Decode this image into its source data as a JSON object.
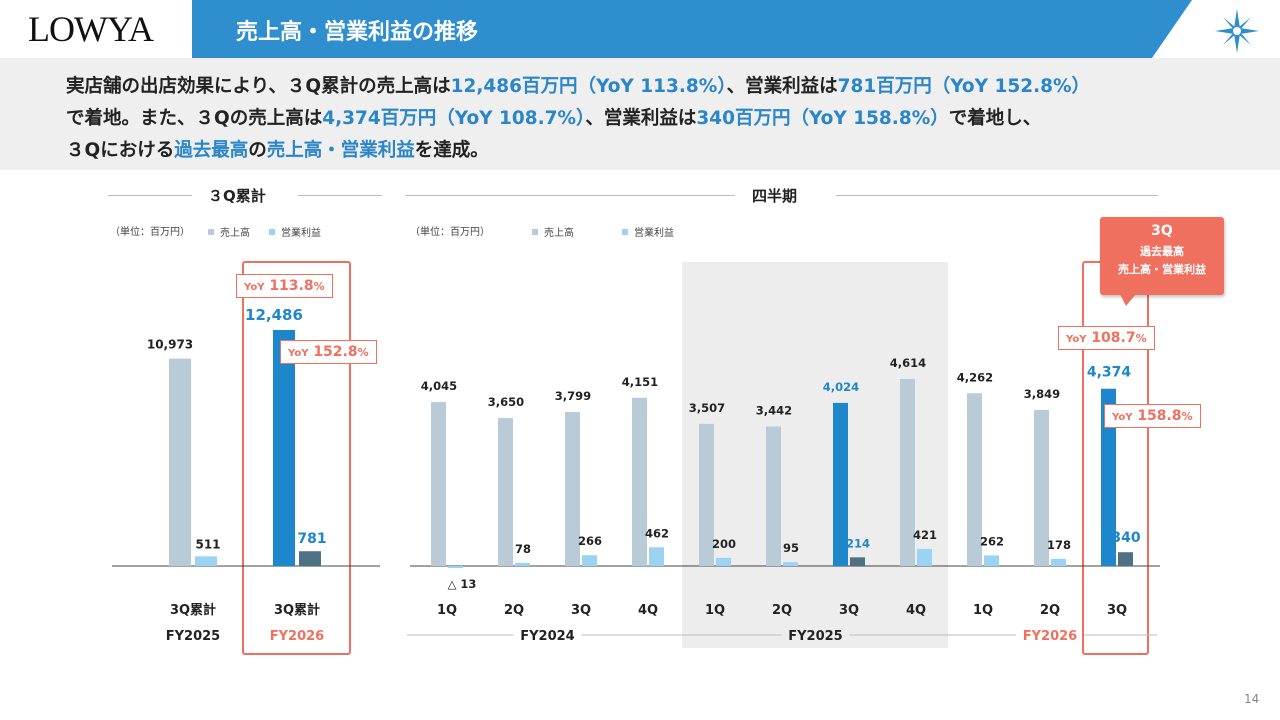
{
  "brand": {
    "logo": "LOWYA",
    "title": "売上高・営業利益の推移",
    "page_number": "14"
  },
  "colors": {
    "header_blue": "#2f8fce",
    "sales_gray": "#b9cbd6",
    "profit_light": "#9dd3f2",
    "sales_highlight": "#1e87cc",
    "profit_highlight": "#4f7184",
    "accent_red": "#f07060"
  },
  "summary": {
    "line1": [
      {
        "t": "実店舗の出店効果により、３Q累計の売上高は",
        "hl": false
      },
      {
        "t": "12,486百万円（YoY 113.8%）",
        "hl": true
      },
      {
        "t": "、営業利益は",
        "hl": false
      },
      {
        "t": "781百万円（YoY 152.8%）",
        "hl": true
      }
    ],
    "line2": [
      {
        "t": "で着地。また、３Qの売上高は",
        "hl": false
      },
      {
        "t": "4,374百万円（YoY 108.7%）",
        "hl": true
      },
      {
        "t": "、営業利益は",
        "hl": false
      },
      {
        "t": "340百万円（YoY 158.8%）",
        "hl": true
      },
      {
        "t": "で着地し、",
        "hl": false
      }
    ],
    "line3": [
      {
        "t": "３Qにおける",
        "hl": false
      },
      {
        "t": "過去最高",
        "hl": true
      },
      {
        "t": "の",
        "hl": false
      },
      {
        "t": "売上高・営業利益",
        "hl": true
      },
      {
        "t": "を達成。",
        "hl": false
      }
    ]
  },
  "left_panel": {
    "title": "３Q累計",
    "unit": "（単位：百万円）",
    "legend_sales": "売上高",
    "legend_profit": "営業利益",
    "yoy_sales": "113.8",
    "yoy_profit": "152.8"
  },
  "right_panel": {
    "title": "四半期",
    "unit": "（単位：百万円）",
    "legend_sales": "売上高",
    "legend_profit": "営業利益",
    "yoy_sales": "108.7",
    "yoy_profit": "158.8"
  },
  "yoy_prefix": "YoY",
  "pct": "%",
  "callout": {
    "line1": "3Q",
    "line2": "過去最高",
    "line3": "売上高・営業利益"
  },
  "chart_data": [
    {
      "type": "bar",
      "series_names": [
        "売上高",
        "営業利益"
      ],
      "categories": [
        "3Q累計",
        "3Q累計"
      ],
      "fiscal_years": [
        "FY2025",
        "FY2026"
      ],
      "sales": [
        10973,
        12486
      ],
      "sales_labels": [
        "10,973",
        "12,486"
      ],
      "profit": [
        511,
        781
      ],
      "profit_labels": [
        "511",
        "781"
      ],
      "highlight_index": 1
    },
    {
      "type": "bar",
      "series_names": [
        "売上高",
        "営業利益"
      ],
      "categories": [
        "1Q",
        "2Q",
        "3Q",
        "4Q",
        "1Q",
        "2Q",
        "3Q",
        "4Q",
        "1Q",
        "2Q",
        "3Q"
      ],
      "fiscal_year_groups": [
        {
          "label": "FY2024",
          "start": 0,
          "end": 3
        },
        {
          "label": "FY2025",
          "start": 4,
          "end": 7
        },
        {
          "label": "FY2026",
          "start": 8,
          "end": 10
        }
      ],
      "sales": [
        4045,
        3650,
        3799,
        4151,
        3507,
        3442,
        4024,
        4614,
        4262,
        3849,
        4374
      ],
      "sales_labels": [
        "4,045",
        "3,650",
        "3,799",
        "4,151",
        "3,507",
        "3,442",
        "4,024",
        "4,614",
        "4,262",
        "3,849",
        "4,374"
      ],
      "profit": [
        -13,
        78,
        266,
        462,
        200,
        95,
        214,
        421,
        262,
        178,
        340
      ],
      "profit_labels": [
        "△ 13",
        "78",
        "266",
        "462",
        "200",
        "95",
        "214",
        "421",
        "262",
        "178",
        "340"
      ],
      "highlight_indices": [
        6,
        10
      ],
      "shaded_group": "FY2025"
    }
  ]
}
